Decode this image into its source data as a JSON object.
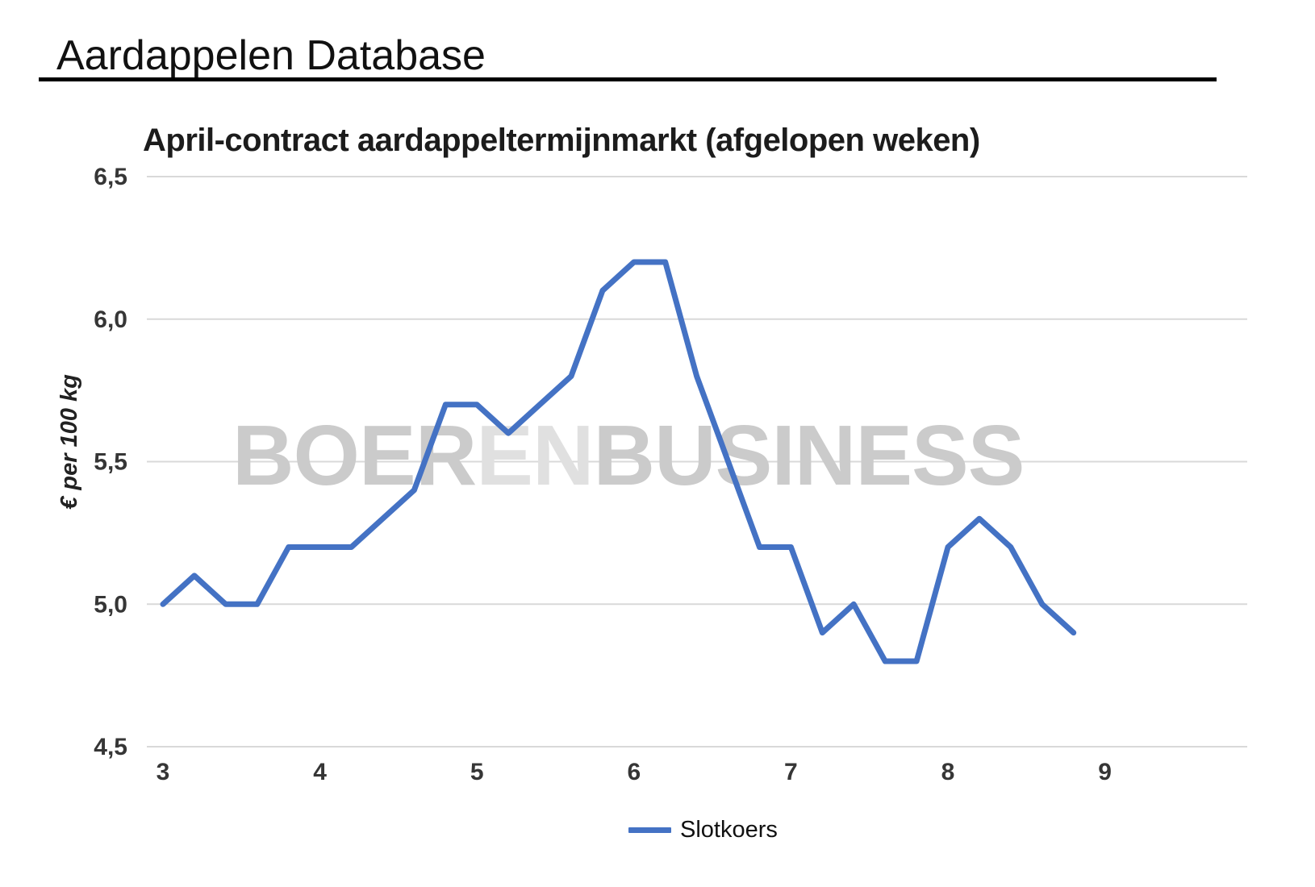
{
  "header": {
    "title": "Aardappelen Database"
  },
  "chart": {
    "title": "April-contract aardappeltermijnmarkt (afgelopen weken)",
    "y_axis_title": "€ per 100 kg",
    "watermark": {
      "part1": "BOER",
      "part2": "EN",
      "part3": "BUSINESS"
    },
    "legend": [
      {
        "label": "Slotkoers",
        "color": "#4472c4"
      }
    ]
  },
  "colors": {
    "line": "#4472c4",
    "gridline": "#d9d9d9",
    "watermark": "#cbcbcb",
    "watermark_light": "#e0e0e0",
    "heading_text": "#111111",
    "tick_text": "#363636",
    "rule": "#000000"
  },
  "chart_data": {
    "type": "line",
    "title": "April-contract aardappeltermijnmarkt (afgelopen weken)",
    "xlabel": "",
    "ylabel": "€ per 100 kg",
    "ylim": [
      4.5,
      6.5
    ],
    "xlim": [
      3,
      9
    ],
    "grid": "horizontal",
    "legend_position": "bottom-center",
    "x_ticks": [
      {
        "label": "3",
        "value": 3
      },
      {
        "label": "4",
        "value": 4
      },
      {
        "label": "5",
        "value": 5
      },
      {
        "label": "6",
        "value": 6
      },
      {
        "label": "7",
        "value": 7
      },
      {
        "label": "8",
        "value": 8
      },
      {
        "label": "9",
        "value": 9
      }
    ],
    "y_ticks": [
      {
        "label": "6,5",
        "value": 6.5
      },
      {
        "label": "6,0",
        "value": 6.0
      },
      {
        "label": "5,5",
        "value": 5.5
      },
      {
        "label": "5,0",
        "value": 5.0
      },
      {
        "label": "4,5",
        "value": 4.5
      }
    ],
    "series": [
      {
        "name": "Slotkoers",
        "x": [
          3.0,
          3.2,
          3.4,
          3.6,
          3.8,
          4.0,
          4.2,
          4.4,
          4.6,
          4.8,
          5.0,
          5.2,
          5.4,
          5.6,
          5.8,
          6.0,
          6.2,
          6.4,
          6.6,
          6.8,
          7.0,
          7.2,
          7.4,
          7.6,
          7.8,
          8.0,
          8.2,
          8.4,
          8.6,
          8.8
        ],
        "values": [
          5.0,
          5.1,
          5.0,
          5.0,
          5.2,
          5.2,
          5.2,
          5.3,
          5.4,
          5.7,
          5.7,
          5.6,
          5.7,
          5.8,
          6.1,
          6.2,
          6.2,
          5.8,
          5.5,
          5.2,
          5.2,
          4.9,
          5.0,
          4.8,
          4.8,
          5.2,
          5.3,
          5.2,
          5.0,
          4.9
        ]
      }
    ]
  }
}
